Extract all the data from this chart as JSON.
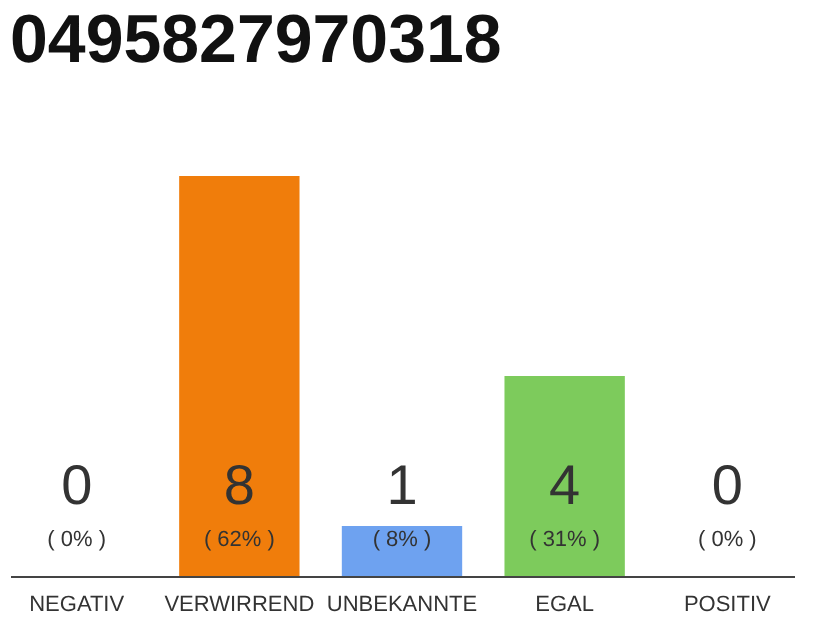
{
  "chart_data": {
    "type": "bar",
    "title": "0495827970318",
    "categories": [
      "NEGATIV",
      "VERWIRREND",
      "UNBEKANNTE",
      "EGAL",
      "POSITIV"
    ],
    "values": [
      0,
      8,
      1,
      4,
      0
    ],
    "colors": [
      "#d0d0d0",
      "#f07d0b",
      "#6ea2f0",
      "#7dcb5c",
      "#d0d0d0"
    ],
    "data_labels": true,
    "annotations": [
      "( 0% )",
      "( 62% )",
      "( 8% )",
      "( 31% )",
      "( 0% )"
    ]
  }
}
